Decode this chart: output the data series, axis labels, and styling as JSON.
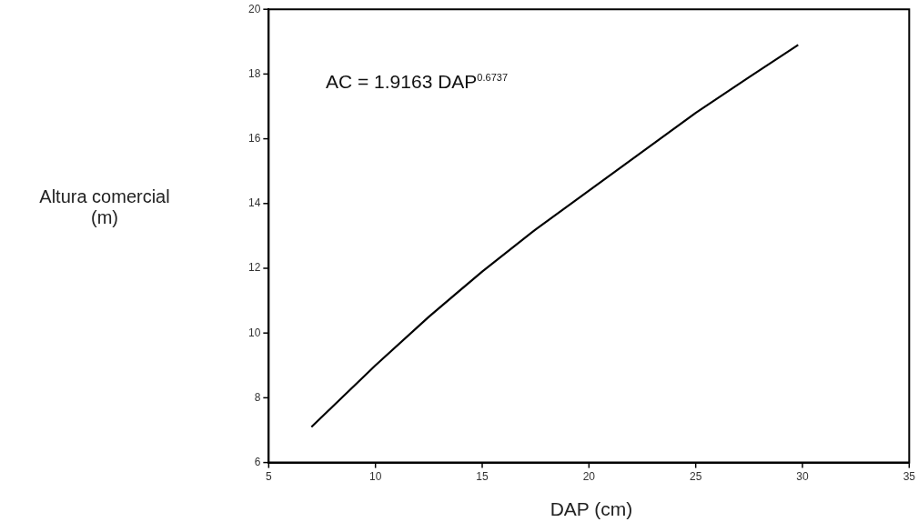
{
  "chart_data": {
    "type": "line",
    "xlabel": "DAP (cm)",
    "ylabel": "Altura comercial (m)",
    "annotations": [
      "AC = 1.9163 DAP$^{0.6737}$"
    ],
    "x": [
      7,
      10,
      12.5,
      15,
      17.5,
      20,
      22.5,
      25,
      27.5,
      29.8
    ],
    "series": [
      {
        "color": "#000000",
        "values": [
          7.1,
          9.0,
          10.5,
          11.9,
          13.2,
          14.4,
          15.6,
          16.8,
          17.9,
          18.9
        ]
      }
    ],
    "xlim": [
      5,
      35
    ],
    "xticks": [
      5,
      10,
      15,
      20,
      25,
      30,
      35
    ],
    "ylim": [
      6,
      20
    ],
    "yticks": [
      6,
      8,
      10,
      12,
      14,
      16,
      18,
      20
    ],
    "grid": false,
    "legend": false,
    "marker": "none",
    "line_style": "solid"
  }
}
